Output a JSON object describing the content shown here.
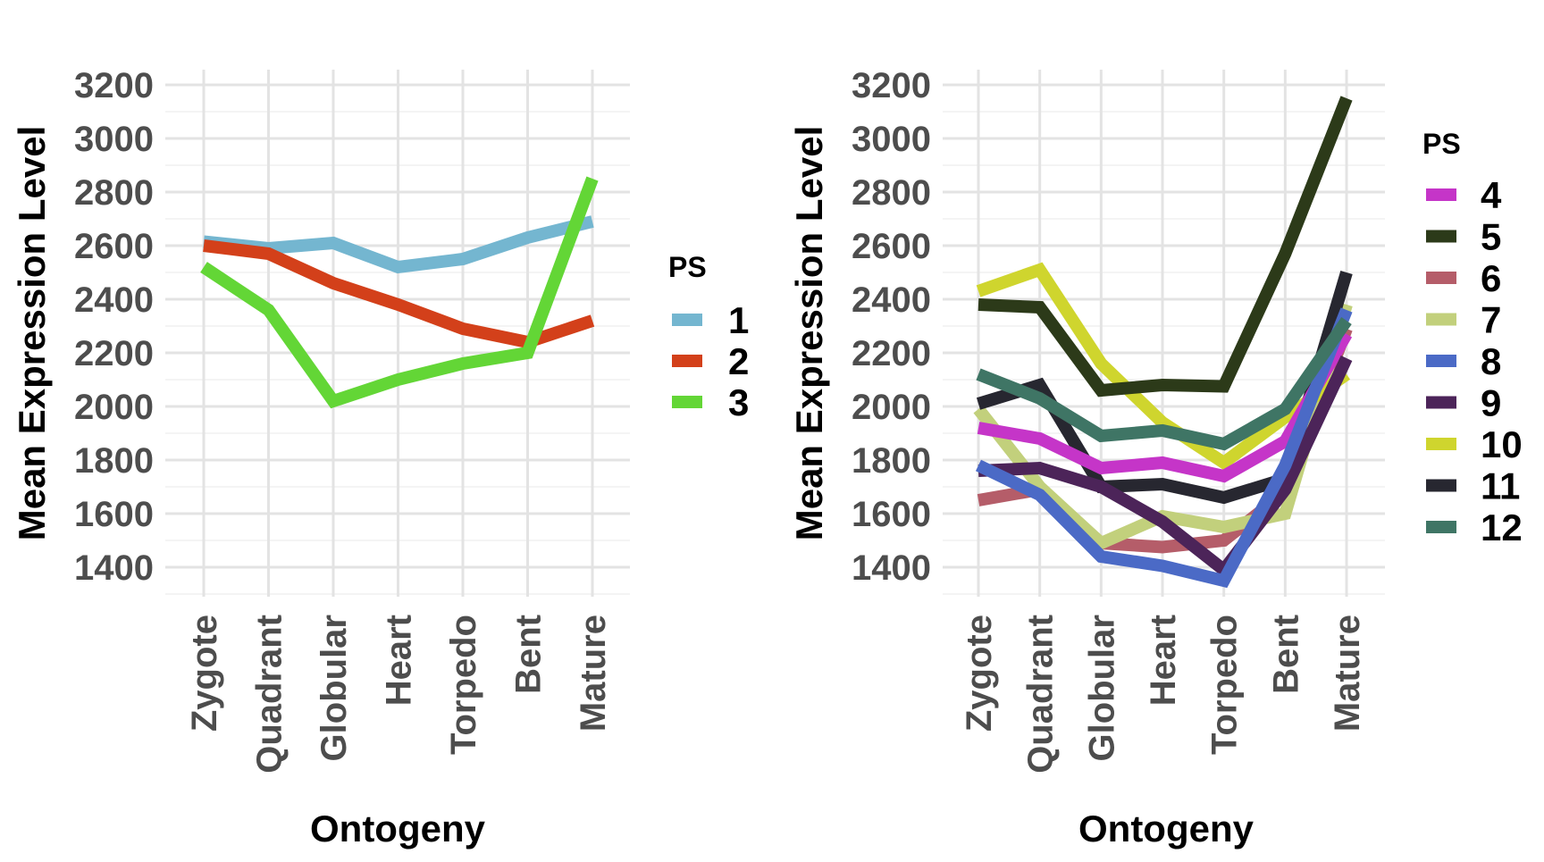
{
  "chart_data": [
    {
      "type": "line",
      "categories": [
        "Zygote",
        "Quadrant",
        "Globular",
        "Heart",
        "Torpedo",
        "Bent",
        "Mature"
      ],
      "xlabel": "Ontogeny",
      "ylabel": "Mean Expression Level",
      "ylim": [
        1270,
        3220
      ],
      "yticks": [
        1400,
        1600,
        1800,
        2000,
        2200,
        2400,
        2600,
        2800,
        3000,
        3200
      ],
      "grid": true,
      "legend": {
        "title": "PS",
        "placement": "right"
      },
      "series": [
        {
          "name": "1",
          "color": "#74b6d0",
          "values": [
            2615,
            2590,
            2610,
            2520,
            2550,
            2630,
            2690
          ]
        },
        {
          "name": "2",
          "color": "#d3401a",
          "values": [
            2600,
            2570,
            2460,
            2380,
            2290,
            2240,
            2320
          ]
        },
        {
          "name": "3",
          "color": "#63d636",
          "values": [
            2520,
            2360,
            2020,
            2100,
            2160,
            2200,
            2850
          ]
        }
      ]
    },
    {
      "type": "line",
      "categories": [
        "Zygote",
        "Quadrant",
        "Globular",
        "Heart",
        "Torpedo",
        "Bent",
        "Mature"
      ],
      "xlabel": "Ontogeny",
      "ylabel": "Mean Expression Level",
      "ylim": [
        1270,
        3220
      ],
      "yticks": [
        1400,
        1600,
        1800,
        2000,
        2200,
        2400,
        2600,
        2800,
        3000,
        3200
      ],
      "grid": true,
      "legend": {
        "title": "PS",
        "placement": "right"
      },
      "series": [
        {
          "name": "6",
          "color": "#b55d69",
          "values": [
            1650,
            1690,
            1490,
            1475,
            1500,
            1680,
            2290
          ]
        },
        {
          "name": "7",
          "color": "#c2d07c",
          "values": [
            1990,
            1700,
            1490,
            1590,
            1550,
            1600,
            2380
          ]
        },
        {
          "name": "10",
          "color": "#cfd52e",
          "values": [
            2430,
            2510,
            2160,
            1940,
            1790,
            1960,
            2120
          ]
        },
        {
          "name": "11",
          "color": "#272730",
          "values": [
            2010,
            2080,
            1700,
            1710,
            1660,
            1730,
            2500
          ]
        },
        {
          "name": "4",
          "color": "#c535c8",
          "values": [
            1920,
            1880,
            1770,
            1790,
            1740,
            1870,
            2270
          ]
        },
        {
          "name": "9",
          "color": "#4c2459",
          "values": [
            1760,
            1770,
            1700,
            1570,
            1390,
            1690,
            2180
          ]
        },
        {
          "name": "8",
          "color": "#4b6ac6",
          "values": [
            1780,
            1670,
            1440,
            1405,
            1350,
            1780,
            2360
          ]
        },
        {
          "name": "12",
          "color": "#3f7565",
          "values": [
            2120,
            2030,
            1890,
            1910,
            1860,
            1990,
            2320
          ]
        },
        {
          "name": "5",
          "color": "#2c3a19",
          "values": [
            2380,
            2370,
            2060,
            2080,
            2075,
            2570,
            3150
          ]
        }
      ],
      "legend_order": [
        "4",
        "5",
        "6",
        "7",
        "8",
        "9",
        "10",
        "11",
        "12"
      ]
    }
  ]
}
